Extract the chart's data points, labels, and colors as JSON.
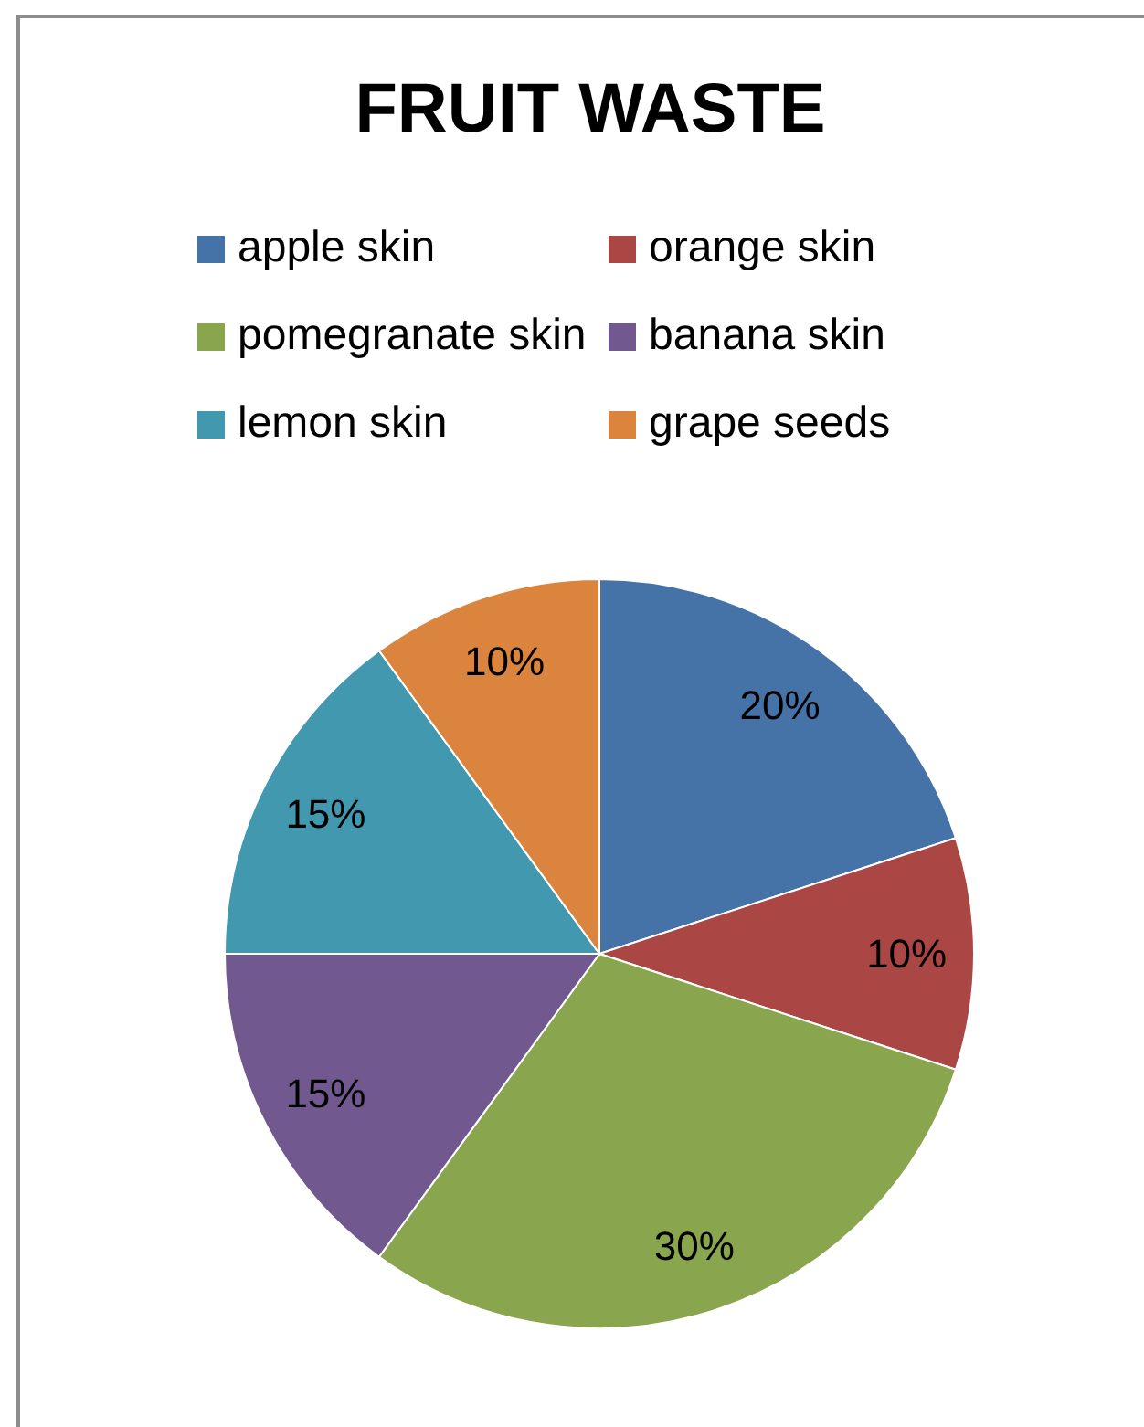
{
  "chart_data": {
    "type": "pie",
    "title": "FRUIT WASTE",
    "categories": [
      "apple skin",
      "orange skin",
      "pomegranate skin",
      "banana skin",
      "lemon skin",
      "grape seeds"
    ],
    "values": [
      20,
      10,
      30,
      15,
      15,
      10
    ],
    "colors": [
      "#4572a7",
      "#aa4643",
      "#89a54e",
      "#71588f",
      "#4198af",
      "#db843d"
    ],
    "value_labels": [
      "20%",
      "10%",
      "30%",
      "15%",
      "15%",
      "10%"
    ],
    "legend": "top"
  }
}
